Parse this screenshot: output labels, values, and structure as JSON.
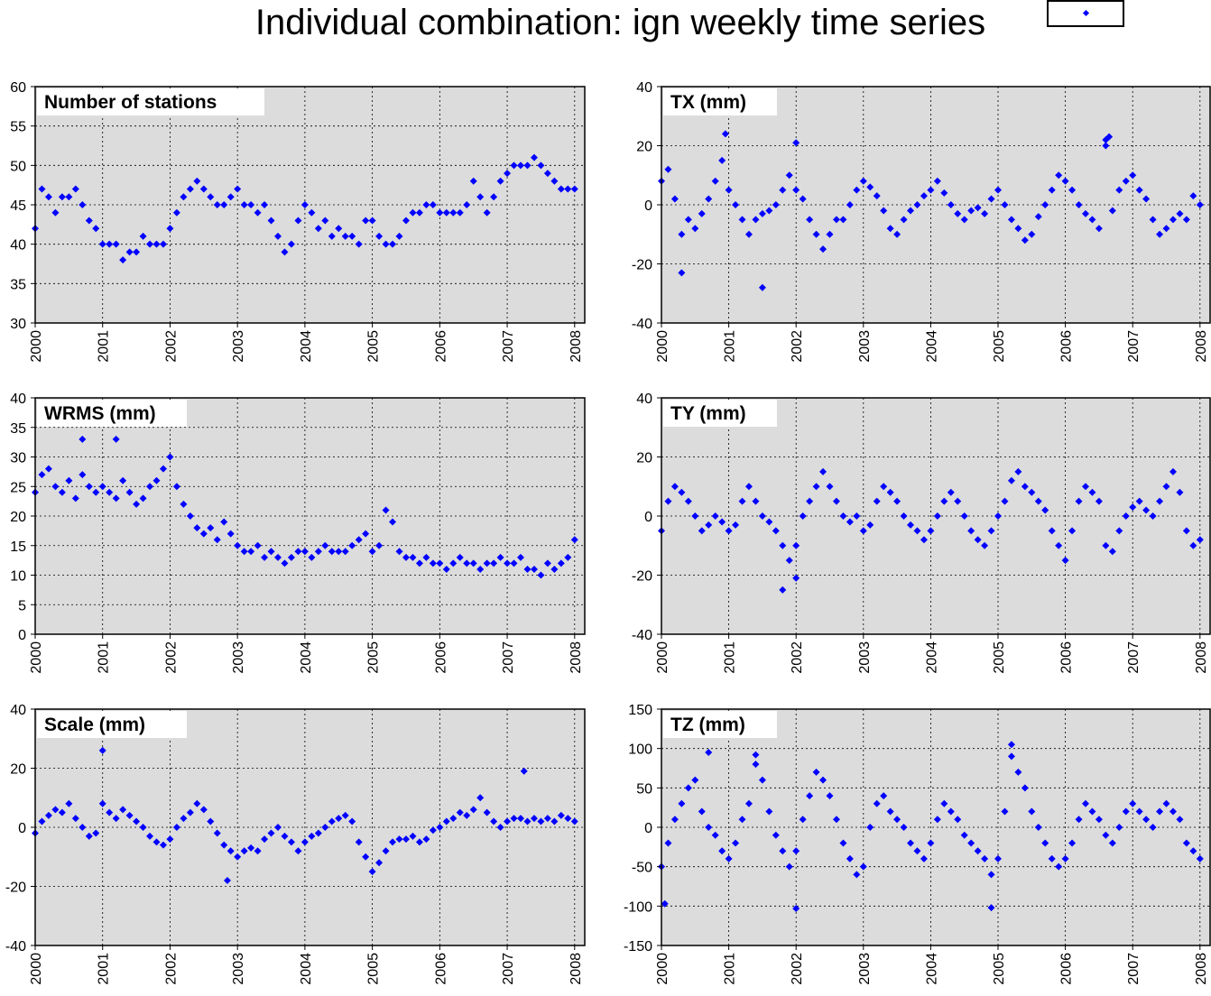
{
  "title": "Individual combination: ign weekly time series",
  "colors": {
    "plot_bg": "#dcdcdc",
    "marker": "#0000ff",
    "axis": "#000000"
  },
  "chart_data": [
    {
      "type": "scatter",
      "title": "Number of stations",
      "xlim": [
        2000,
        2008.15
      ],
      "ylim": [
        30,
        60
      ],
      "yticks": [
        30,
        35,
        40,
        45,
        50,
        55,
        60
      ],
      "xticks": [
        2000,
        2001,
        2002,
        2003,
        2004,
        2005,
        2006,
        2007,
        2008
      ],
      "x": [
        2000.0,
        2000.1,
        2000.2,
        2000.3,
        2000.4,
        2000.5,
        2000.6,
        2000.7,
        2000.8,
        2000.9,
        2001.0,
        2001.1,
        2001.2,
        2001.3,
        2001.4,
        2001.5,
        2001.6,
        2001.7,
        2001.8,
        2001.9,
        2002.0,
        2002.1,
        2002.2,
        2002.3,
        2002.4,
        2002.5,
        2002.6,
        2002.7,
        2002.8,
        2002.9,
        2003.0,
        2003.1,
        2003.2,
        2003.3,
        2003.4,
        2003.5,
        2003.6,
        2003.7,
        2003.8,
        2003.9,
        2004.0,
        2004.1,
        2004.2,
        2004.3,
        2004.4,
        2004.5,
        2004.6,
        2004.7,
        2004.8,
        2004.9,
        2005.0,
        2005.1,
        2005.2,
        2005.3,
        2005.4,
        2005.5,
        2005.6,
        2005.7,
        2005.8,
        2005.9,
        2006.0,
        2006.1,
        2006.2,
        2006.3,
        2006.4,
        2006.5,
        2006.6,
        2006.7,
        2006.8,
        2006.9,
        2007.0,
        2007.1,
        2007.2,
        2007.3,
        2007.4,
        2007.5,
        2007.6,
        2007.7,
        2007.8,
        2007.9,
        2008.0
      ],
      "y": [
        42,
        47,
        46,
        44,
        46,
        46,
        47,
        45,
        43,
        42,
        40,
        40,
        40,
        38,
        39,
        39,
        41,
        40,
        40,
        40,
        42,
        44,
        46,
        47,
        48,
        47,
        46,
        45,
        45,
        46,
        47,
        45,
        45,
        44,
        45,
        43,
        41,
        39,
        40,
        43,
        45,
        44,
        42,
        43,
        41,
        42,
        41,
        41,
        40,
        43,
        43,
        41,
        40,
        40,
        41,
        43,
        44,
        44,
        45,
        45,
        44,
        44,
        44,
        44,
        45,
        48,
        46,
        44,
        46,
        48,
        49,
        50,
        50,
        50,
        51,
        50,
        49,
        48,
        47,
        47,
        47
      ]
    },
    {
      "type": "scatter",
      "title": "TX (mm)",
      "xlim": [
        2000,
        2008.15
      ],
      "ylim": [
        -40,
        40
      ],
      "yticks": [
        -40,
        -20,
        0,
        20,
        40
      ],
      "xticks": [
        2000,
        2001,
        2002,
        2003,
        2004,
        2005,
        2006,
        2007,
        2008
      ],
      "x": [
        2000.0,
        2000.1,
        2000.2,
        2000.3,
        2000.4,
        2000.5,
        2000.6,
        2000.7,
        2000.8,
        2000.9,
        2001.0,
        2001.1,
        2001.2,
        2001.3,
        2001.4,
        2001.5,
        2001.6,
        2001.7,
        2001.8,
        2001.9,
        2002.0,
        2002.1,
        2002.2,
        2002.3,
        2002.4,
        2002.5,
        2002.6,
        2002.7,
        2002.8,
        2002.9,
        2003.0,
        2003.1,
        2003.2,
        2003.3,
        2003.4,
        2003.5,
        2003.6,
        2003.7,
        2003.8,
        2003.9,
        2004.0,
        2004.1,
        2004.2,
        2004.3,
        2004.4,
        2004.5,
        2004.6,
        2004.7,
        2004.8,
        2004.9,
        2005.0,
        2005.1,
        2005.2,
        2005.3,
        2005.4,
        2005.5,
        2005.6,
        2005.7,
        2005.8,
        2005.9,
        2006.0,
        2006.1,
        2006.2,
        2006.3,
        2006.4,
        2006.5,
        2006.6,
        2006.7,
        2006.8,
        2006.9,
        2007.0,
        2007.1,
        2007.2,
        2007.3,
        2007.4,
        2007.5,
        2007.6,
        2007.7,
        2007.8,
        2007.9,
        2008.0,
        2001.5,
        2000.3,
        2006.6,
        2006.65,
        2002.0,
        2000.95
      ],
      "y": [
        8,
        12,
        2,
        -10,
        -5,
        -8,
        -3,
        2,
        8,
        15,
        5,
        0,
        -5,
        -10,
        -5,
        -3,
        -2,
        0,
        5,
        10,
        5,
        2,
        -5,
        -10,
        -15,
        -10,
        -5,
        -5,
        0,
        5,
        8,
        6,
        3,
        -2,
        -8,
        -10,
        -5,
        -2,
        0,
        3,
        5,
        8,
        4,
        0,
        -3,
        -5,
        -2,
        -1,
        -3,
        2,
        5,
        0,
        -5,
        -8,
        -12,
        -10,
        -4,
        0,
        5,
        10,
        8,
        5,
        0,
        -3,
        -5,
        -8,
        20,
        -2,
        5,
        8,
        10,
        5,
        2,
        -5,
        -10,
        -8,
        -5,
        -3,
        -5,
        3,
        0,
        -28,
        -23,
        22,
        23,
        21,
        24
      ]
    },
    {
      "type": "scatter",
      "title": "WRMS (mm)",
      "xlim": [
        2000,
        2008.15
      ],
      "ylim": [
        0,
        40
      ],
      "yticks": [
        0,
        5,
        10,
        15,
        20,
        25,
        30,
        35,
        40
      ],
      "xticks": [
        2000,
        2001,
        2002,
        2003,
        2004,
        2005,
        2006,
        2007,
        2008
      ],
      "x": [
        2000.0,
        2000.1,
        2000.2,
        2000.3,
        2000.4,
        2000.5,
        2000.6,
        2000.7,
        2000.8,
        2000.9,
        2001.0,
        2001.1,
        2001.2,
        2001.3,
        2001.4,
        2001.5,
        2001.6,
        2001.7,
        2001.8,
        2001.9,
        2002.0,
        2002.1,
        2002.2,
        2002.3,
        2002.4,
        2002.5,
        2002.6,
        2002.7,
        2002.8,
        2002.9,
        2003.0,
        2003.1,
        2003.2,
        2003.3,
        2003.4,
        2003.5,
        2003.6,
        2003.7,
        2003.8,
        2003.9,
        2004.0,
        2004.1,
        2004.2,
        2004.3,
        2004.4,
        2004.5,
        2004.6,
        2004.7,
        2004.8,
        2004.9,
        2005.0,
        2005.1,
        2005.2,
        2005.3,
        2005.4,
        2005.5,
        2005.6,
        2005.7,
        2005.8,
        2005.9,
        2006.0,
        2006.1,
        2006.2,
        2006.3,
        2006.4,
        2006.5,
        2006.6,
        2006.7,
        2006.8,
        2006.9,
        2007.0,
        2007.1,
        2007.2,
        2007.3,
        2007.4,
        2007.5,
        2007.6,
        2007.7,
        2007.8,
        2007.9,
        2008.0,
        2000.7,
        2001.2
      ],
      "y": [
        24,
        27,
        28,
        25,
        24,
        26,
        23,
        27,
        25,
        24,
        25,
        24,
        23,
        26,
        24,
        22,
        23,
        25,
        26,
        28,
        30,
        25,
        22,
        20,
        18,
        17,
        18,
        16,
        19,
        17,
        15,
        14,
        14,
        15,
        13,
        14,
        13,
        12,
        13,
        14,
        14,
        13,
        14,
        15,
        14,
        14,
        14,
        15,
        16,
        17,
        14,
        15,
        21,
        19,
        14,
        13,
        13,
        12,
        13,
        12,
        12,
        11,
        12,
        13,
        12,
        12,
        11,
        12,
        12,
        13,
        12,
        12,
        13,
        11,
        11,
        10,
        12,
        11,
        12,
        13,
        16,
        33,
        33
      ]
    },
    {
      "type": "scatter",
      "title": "TY (mm)",
      "xlim": [
        2000,
        2008.15
      ],
      "ylim": [
        -40,
        40
      ],
      "yticks": [
        -40,
        -20,
        0,
        20,
        40
      ],
      "xticks": [
        2000,
        2001,
        2002,
        2003,
        2004,
        2005,
        2006,
        2007,
        2008
      ],
      "x": [
        2000.0,
        2000.1,
        2000.2,
        2000.3,
        2000.4,
        2000.5,
        2000.6,
        2000.7,
        2000.8,
        2000.9,
        2001.0,
        2001.1,
        2001.2,
        2001.3,
        2001.4,
        2001.5,
        2001.6,
        2001.7,
        2001.8,
        2001.9,
        2002.0,
        2002.1,
        2002.2,
        2002.3,
        2002.4,
        2002.5,
        2002.6,
        2002.7,
        2002.8,
        2002.9,
        2003.0,
        2003.1,
        2003.2,
        2003.3,
        2003.4,
        2003.5,
        2003.6,
        2003.7,
        2003.8,
        2003.9,
        2004.0,
        2004.1,
        2004.2,
        2004.3,
        2004.4,
        2004.5,
        2004.6,
        2004.7,
        2004.8,
        2004.9,
        2005.0,
        2005.1,
        2005.2,
        2005.3,
        2005.4,
        2005.5,
        2005.6,
        2005.7,
        2005.8,
        2005.9,
        2006.0,
        2006.1,
        2006.2,
        2006.3,
        2006.4,
        2006.5,
        2006.6,
        2006.7,
        2006.8,
        2006.9,
        2007.0,
        2007.1,
        2007.2,
        2007.3,
        2007.4,
        2007.5,
        2007.6,
        2007.7,
        2007.8,
        2007.9,
        2008.0,
        2001.8,
        2002.0
      ],
      "y": [
        -5,
        5,
        10,
        8,
        5,
        0,
        -5,
        -3,
        0,
        -2,
        -5,
        -3,
        5,
        10,
        5,
        0,
        -2,
        -5,
        -10,
        -15,
        -10,
        0,
        5,
        10,
        15,
        10,
        5,
        0,
        -2,
        0,
        -5,
        -3,
        5,
        10,
        8,
        5,
        0,
        -3,
        -5,
        -8,
        -5,
        0,
        5,
        8,
        5,
        0,
        -5,
        -8,
        -10,
        -5,
        0,
        5,
        12,
        15,
        10,
        8,
        5,
        2,
        -5,
        -10,
        -15,
        -5,
        5,
        10,
        8,
        5,
        -10,
        -12,
        -5,
        0,
        3,
        5,
        2,
        0,
        5,
        10,
        15,
        8,
        -5,
        -10,
        -8,
        -25,
        -21
      ]
    },
    {
      "type": "scatter",
      "title": "Scale (mm)",
      "xlim": [
        2000,
        2008.15
      ],
      "ylim": [
        -40,
        40
      ],
      "yticks": [
        -40,
        -20,
        0,
        20,
        40
      ],
      "xticks": [
        2000,
        2001,
        2002,
        2003,
        2004,
        2005,
        2006,
        2007,
        2008
      ],
      "x": [
        2000.0,
        2000.1,
        2000.2,
        2000.3,
        2000.4,
        2000.5,
        2000.6,
        2000.7,
        2000.8,
        2000.9,
        2001.0,
        2001.1,
        2001.2,
        2001.3,
        2001.4,
        2001.5,
        2001.6,
        2001.7,
        2001.8,
        2001.9,
        2002.0,
        2002.1,
        2002.2,
        2002.3,
        2002.4,
        2002.5,
        2002.6,
        2002.7,
        2002.8,
        2002.9,
        2003.0,
        2003.1,
        2003.2,
        2003.3,
        2003.4,
        2003.5,
        2003.6,
        2003.7,
        2003.8,
        2003.9,
        2004.0,
        2004.1,
        2004.2,
        2004.3,
        2004.4,
        2004.5,
        2004.6,
        2004.7,
        2004.8,
        2004.9,
        2005.0,
        2005.1,
        2005.2,
        2005.3,
        2005.4,
        2005.5,
        2005.6,
        2005.7,
        2005.8,
        2005.9,
        2006.0,
        2006.1,
        2006.2,
        2006.3,
        2006.4,
        2006.5,
        2006.6,
        2006.7,
        2006.8,
        2006.9,
        2007.0,
        2007.1,
        2007.2,
        2007.3,
        2007.4,
        2007.5,
        2007.6,
        2007.7,
        2007.8,
        2007.9,
        2008.0,
        2001.0,
        2007.25,
        2002.85
      ],
      "y": [
        -2,
        2,
        4,
        6,
        5,
        8,
        3,
        0,
        -3,
        -2,
        8,
        5,
        3,
        6,
        4,
        2,
        0,
        -3,
        -5,
        -6,
        -4,
        0,
        3,
        5,
        8,
        6,
        2,
        -2,
        -6,
        -8,
        -10,
        -8,
        -7,
        -8,
        -4,
        -2,
        0,
        -3,
        -5,
        -8,
        -5,
        -3,
        -2,
        0,
        2,
        3,
        4,
        2,
        -5,
        -10,
        -15,
        -12,
        -8,
        -5,
        -4,
        -4,
        -3,
        -5,
        -4,
        -1,
        0,
        2,
        3,
        5,
        4,
        6,
        10,
        5,
        2,
        0,
        2,
        3,
        3,
        2,
        3,
        2,
        3,
        2,
        4,
        3,
        2,
        26,
        19,
        -18
      ]
    },
    {
      "type": "scatter",
      "title": "TZ (mm)",
      "xlim": [
        2000,
        2008.15
      ],
      "ylim": [
        -150,
        150
      ],
      "yticks": [
        -150,
        -100,
        -50,
        0,
        50,
        100,
        150
      ],
      "xticks": [
        2000,
        2001,
        2002,
        2003,
        2004,
        2005,
        2006,
        2007,
        2008
      ],
      "x": [
        2000.0,
        2000.1,
        2000.2,
        2000.3,
        2000.4,
        2000.5,
        2000.6,
        2000.7,
        2000.8,
        2000.9,
        2001.0,
        2001.1,
        2001.2,
        2001.3,
        2001.4,
        2001.5,
        2001.6,
        2001.7,
        2001.8,
        2001.9,
        2002.0,
        2002.1,
        2002.2,
        2002.3,
        2002.4,
        2002.5,
        2002.6,
        2002.7,
        2002.8,
        2002.9,
        2003.0,
        2003.1,
        2003.2,
        2003.3,
        2003.4,
        2003.5,
        2003.6,
        2003.7,
        2003.8,
        2003.9,
        2004.0,
        2004.1,
        2004.2,
        2004.3,
        2004.4,
        2004.5,
        2004.6,
        2004.7,
        2004.8,
        2004.9,
        2005.0,
        2005.1,
        2005.2,
        2005.3,
        2005.4,
        2005.5,
        2005.6,
        2005.7,
        2005.8,
        2005.9,
        2006.0,
        2006.1,
        2006.2,
        2006.3,
        2006.4,
        2006.5,
        2006.6,
        2006.7,
        2006.8,
        2006.9,
        2007.0,
        2007.1,
        2007.2,
        2007.3,
        2007.4,
        2007.5,
        2007.6,
        2007.7,
        2007.8,
        2007.9,
        2008.0,
        2000.05,
        2000.7,
        2001.4,
        2002.0,
        2004.9,
        2005.2
      ],
      "y": [
        -50,
        -20,
        10,
        30,
        50,
        60,
        20,
        0,
        -10,
        -30,
        -40,
        -20,
        10,
        30,
        80,
        60,
        20,
        -10,
        -30,
        -50,
        -30,
        10,
        40,
        70,
        60,
        40,
        10,
        -20,
        -40,
        -60,
        -50,
        0,
        30,
        40,
        20,
        10,
        0,
        -20,
        -30,
        -40,
        -20,
        10,
        30,
        20,
        10,
        -10,
        -20,
        -30,
        -40,
        -60,
        -40,
        20,
        90,
        70,
        50,
        20,
        0,
        -20,
        -40,
        -50,
        -40,
        -20,
        10,
        30,
        20,
        10,
        -10,
        -20,
        0,
        20,
        30,
        20,
        10,
        0,
        20,
        30,
        20,
        10,
        -20,
        -30,
        -40,
        -97,
        95,
        92,
        -103,
        -102,
        105
      ]
    }
  ]
}
